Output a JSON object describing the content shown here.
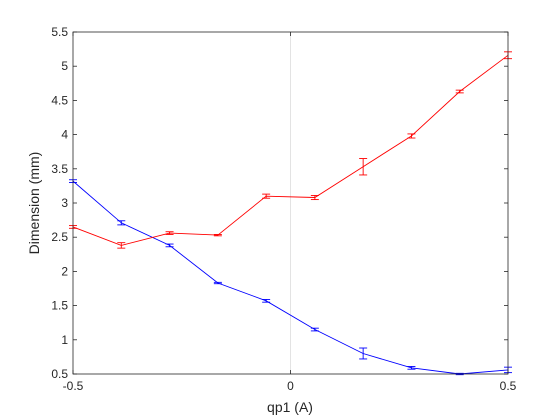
{
  "chart_data": {
    "type": "line",
    "title": "",
    "xlabel": "qp1 (A)",
    "ylabel": "Dimension (mm)",
    "xlim": [
      -0.5,
      0.5
    ],
    "ylim": [
      0.5,
      5.5
    ],
    "xticks": [
      -0.5,
      0,
      0.5
    ],
    "xtick_labels": [
      "-0.5",
      "0",
      "0.5"
    ],
    "yticks": [
      0.5,
      1,
      1.5,
      2,
      2.5,
      3,
      3.5,
      4,
      4.5,
      5,
      5.5
    ],
    "ytick_labels": [
      "0.5",
      "1",
      "1.5",
      "2",
      "2.5",
      "3",
      "3.5",
      "4",
      "4.5",
      "5",
      "5.5"
    ],
    "grid": "x-zero only",
    "legend": "none",
    "x": [
      -0.5,
      -0.389,
      -0.278,
      -0.167,
      -0.056,
      0.056,
      0.167,
      0.278,
      0.389,
      0.5
    ],
    "series": [
      {
        "color": "#0000ff",
        "values": [
          3.32,
          2.71,
          2.38,
          1.83,
          1.57,
          1.15,
          0.8,
          0.59,
          0.5,
          0.56
        ],
        "errors": [
          0.02,
          0.03,
          0.02,
          0.01,
          0.02,
          0.02,
          0.08,
          0.02,
          0.01,
          0.04
        ]
      },
      {
        "color": "#ff0000",
        "values": [
          2.65,
          2.38,
          2.56,
          2.53,
          3.1,
          3.08,
          3.53,
          3.98,
          4.63,
          5.16
        ],
        "errors": [
          0.02,
          0.04,
          0.02,
          0.01,
          0.03,
          0.03,
          0.12,
          0.03,
          0.02,
          0.05
        ]
      }
    ]
  }
}
